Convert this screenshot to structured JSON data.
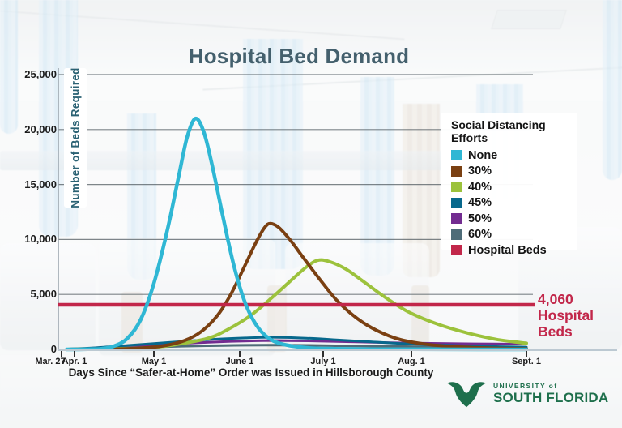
{
  "page": {
    "title": "Hospital Bed Demand"
  },
  "y_axis": {
    "title": "Number of Beds Required"
  },
  "x_axis": {
    "title": "Days Since “Safer-at-Home” Order was Issued in Hillsborough County"
  },
  "legend": {
    "title": "Social Distancing Efforts",
    "items": [
      {
        "label": "None",
        "color": "#2fb7d4"
      },
      {
        "label": "30%",
        "color": "#7a4012"
      },
      {
        "label": "40%",
        "color": "#9cc23c"
      },
      {
        "label": "45%",
        "color": "#07688c"
      },
      {
        "label": "50%",
        "color": "#722c90"
      },
      {
        "label": "60%",
        "color": "#4e6c78"
      },
      {
        "label": "Hospital Beds",
        "color": "#c2274a"
      }
    ]
  },
  "annotation": {
    "value": "4,060",
    "line2": "Hospital",
    "line3": "Beds",
    "color": "#c2274a"
  },
  "logo": {
    "line1": "UNIVERSITY of",
    "line2": "SOUTH FLORIDA",
    "color": "#1e6f4c"
  },
  "chart_data": {
    "type": "line",
    "title": "Hospital Bed Demand",
    "xlabel": "Days Since “Safer-at-Home” Order was Issued in Hillsborough County",
    "ylabel": "Number of Beds Required",
    "ylim": [
      0,
      25000
    ],
    "grid": true,
    "legend_position": "right",
    "x_unit": "days since Mar. 27 (calendar dates shown)",
    "x_ticks": [
      {
        "label": "Mar. 27",
        "day": 0
      },
      {
        "label": "Apr. 1",
        "day": 5
      },
      {
        "label": "May 1",
        "day": 35
      },
      {
        "label": "June 1",
        "day": 66
      },
      {
        "label": "July 1",
        "day": 96
      },
      {
        "label": "Aug. 1",
        "day": 127
      },
      {
        "label": "Sept. 1",
        "day": 158
      }
    ],
    "y_ticks": [
      {
        "value": 0,
        "label": "0"
      },
      {
        "value": 5000,
        "label": "5,000"
      },
      {
        "value": 10000,
        "label": "10,000"
      },
      {
        "value": 15000,
        "label": "15,000"
      },
      {
        "value": 20000,
        "label": "20,000"
      },
      {
        "value": 25000,
        "label": "25,000"
      }
    ],
    "hospital_beds_line": {
      "value": 4060,
      "label": "4,060 Hospital Beds",
      "color": "#c2274a"
    },
    "series": [
      {
        "name": "None",
        "color": "#2fb7d4",
        "peak": {
          "day": 50,
          "beds": 21000
        },
        "points": [
          [
            2,
            0
          ],
          [
            10,
            20
          ],
          [
            15,
            60
          ],
          [
            20,
            300
          ],
          [
            25,
            1000
          ],
          [
            30,
            2700
          ],
          [
            35,
            6000
          ],
          [
            40,
            11000
          ],
          [
            44,
            15800
          ],
          [
            47,
            19300
          ],
          [
            50,
            21000
          ],
          [
            53,
            19800
          ],
          [
            56,
            16800
          ],
          [
            60,
            12000
          ],
          [
            64,
            7500
          ],
          [
            68,
            4200
          ],
          [
            72,
            2200
          ],
          [
            76,
            1100
          ],
          [
            81,
            500
          ],
          [
            90,
            150
          ],
          [
            100,
            60
          ],
          [
            115,
            20
          ],
          [
            135,
            5
          ],
          [
            158,
            0
          ]
        ]
      },
      {
        "name": "30%",
        "color": "#7a4012",
        "peak": {
          "day": 77,
          "beds": 11450
        },
        "points": [
          [
            2,
            0
          ],
          [
            20,
            30
          ],
          [
            30,
            120
          ],
          [
            38,
            300
          ],
          [
            46,
            800
          ],
          [
            52,
            1600
          ],
          [
            58,
            3100
          ],
          [
            63,
            5100
          ],
          [
            68,
            7700
          ],
          [
            72,
            9800
          ],
          [
            75,
            11100
          ],
          [
            77,
            11450
          ],
          [
            80,
            11100
          ],
          [
            84,
            10000
          ],
          [
            89,
            8300
          ],
          [
            95,
            6300
          ],
          [
            101,
            4400
          ],
          [
            108,
            2800
          ],
          [
            115,
            1700
          ],
          [
            123,
            900
          ],
          [
            132,
            430
          ],
          [
            142,
            190
          ],
          [
            152,
            90
          ],
          [
            158,
            60
          ]
        ]
      },
      {
        "name": "40%",
        "color": "#9cc23c",
        "peak": {
          "day": 94,
          "beds": 8100
        },
        "points": [
          [
            2,
            0
          ],
          [
            20,
            60
          ],
          [
            35,
            180
          ],
          [
            45,
            520
          ],
          [
            55,
            1050
          ],
          [
            62,
            1850
          ],
          [
            70,
            3100
          ],
          [
            78,
            4800
          ],
          [
            85,
            6400
          ],
          [
            90,
            7500
          ],
          [
            94,
            8100
          ],
          [
            98,
            8000
          ],
          [
            104,
            7300
          ],
          [
            110,
            6200
          ],
          [
            118,
            4700
          ],
          [
            126,
            3400
          ],
          [
            134,
            2300
          ],
          [
            142,
            1500
          ],
          [
            150,
            900
          ],
          [
            158,
            560
          ]
        ]
      },
      {
        "name": "45%",
        "color": "#07688c",
        "peak": {
          "day": 78,
          "beds": 1100
        },
        "points": [
          [
            2,
            40
          ],
          [
            12,
            140
          ],
          [
            25,
            360
          ],
          [
            40,
            630
          ],
          [
            55,
            890
          ],
          [
            68,
            1040
          ],
          [
            78,
            1100
          ],
          [
            90,
            1020
          ],
          [
            100,
            880
          ],
          [
            112,
            700
          ],
          [
            124,
            520
          ],
          [
            136,
            380
          ],
          [
            148,
            270
          ],
          [
            158,
            210
          ]
        ]
      },
      {
        "name": "50%",
        "color": "#722c90",
        "peak": {
          "day": 82,
          "beds": 800
        },
        "points": [
          [
            2,
            25
          ],
          [
            15,
            130
          ],
          [
            30,
            310
          ],
          [
            45,
            530
          ],
          [
            60,
            700
          ],
          [
            72,
            780
          ],
          [
            82,
            800
          ],
          [
            94,
            760
          ],
          [
            106,
            690
          ],
          [
            118,
            620
          ],
          [
            130,
            560
          ],
          [
            144,
            510
          ],
          [
            158,
            470
          ]
        ]
      },
      {
        "name": "60%",
        "color": "#4e6c78",
        "peak": {
          "day": 75,
          "beds": 390
        },
        "points": [
          [
            2,
            15
          ],
          [
            15,
            85
          ],
          [
            30,
            185
          ],
          [
            45,
            285
          ],
          [
            60,
            355
          ],
          [
            75,
            390
          ],
          [
            90,
            370
          ],
          [
            105,
            320
          ],
          [
            120,
            270
          ],
          [
            135,
            225
          ],
          [
            148,
            195
          ],
          [
            158,
            175
          ]
        ]
      }
    ]
  }
}
